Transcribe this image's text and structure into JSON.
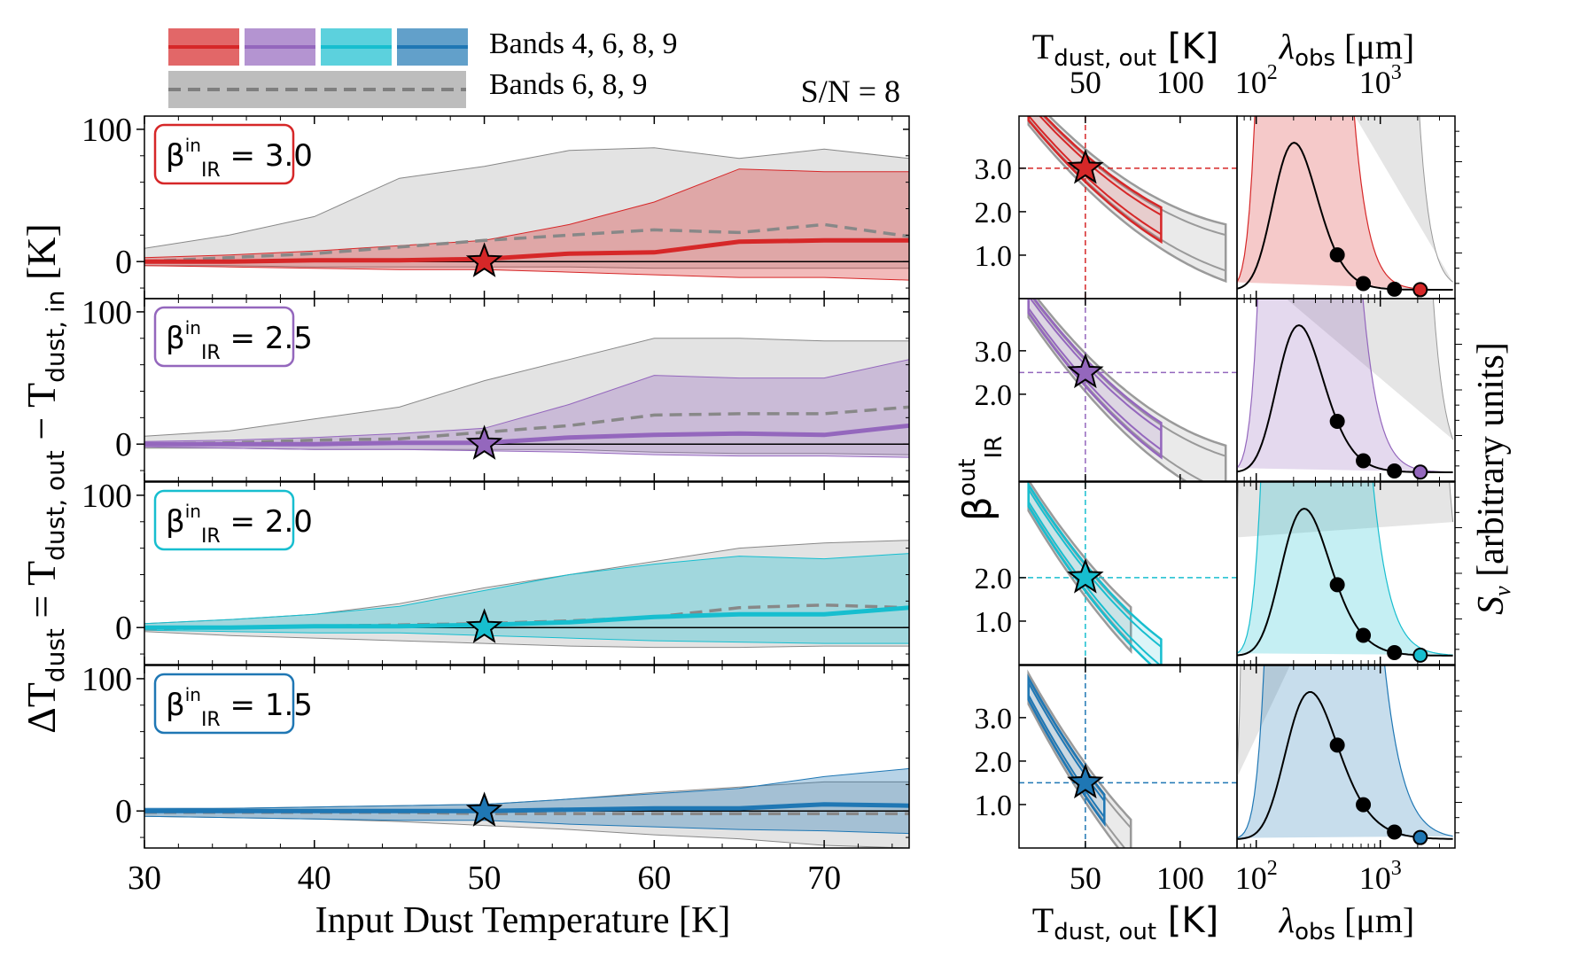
{
  "legend": {
    "row1_label": "Bands 4, 6, 8, 9",
    "row2_label": "Bands 6, 8, 9",
    "colors": [
      "#d62728",
      "#9467bd",
      "#17becf",
      "#1f77b4"
    ]
  },
  "annotation_sn": "S/N = 8",
  "left_ylabel": {
    "main": "ΔT",
    "main_sub": "dust",
    "eq": " = T",
    "sub1": "dust, out",
    "minus": " − T",
    "sub2": "dust, in",
    "unit": " [K]"
  },
  "left_xlabel": "Input Dust Temperature [K]",
  "left_xticks": [
    "30",
    "40",
    "50",
    "60",
    "70"
  ],
  "left_yticks": [
    "0",
    "100"
  ],
  "beta_labels": [
    "3.0",
    "2.5",
    "2.0",
    "1.5"
  ],
  "beta_prefix": "β",
  "beta_sup": "in",
  "beta_sub": "IR",
  "beta_eq": " = ",
  "mid_ylabel": {
    "main": "β",
    "sup": "out",
    "sub": "IR"
  },
  "mid_yticks": [
    [
      "3.0",
      "2.0",
      "1.0"
    ],
    [
      "3.0",
      "2.0"
    ],
    [
      "2.0",
      "1.0"
    ],
    [
      "3.0",
      "2.0",
      "1.0"
    ]
  ],
  "mid_xticks": [
    "50",
    "100"
  ],
  "mid_xlabel": {
    "main": "T",
    "sub": "dust, out",
    "unit": " [K]"
  },
  "right_xticks": [
    {
      "base": "10",
      "exp": "2"
    },
    {
      "base": "10",
      "exp": "3"
    }
  ],
  "right_xlabel": {
    "main": "λ",
    "sub": "obs",
    "unit": " [μm]"
  },
  "right_ylabel": {
    "main": "S",
    "sub": "ν",
    "unit": " [arbitrary units]"
  },
  "chart_data": [
    {
      "type": "area",
      "title": "",
      "xlabel": "Input Dust Temperature [K]",
      "ylabel": "ΔT_dust = T_dust,out − T_dust,in [K]",
      "x": [
        30,
        35,
        40,
        45,
        50,
        55,
        60,
        65,
        70,
        75
      ],
      "xlim": [
        30,
        75
      ],
      "ylim": [
        -28,
        110
      ],
      "grid": false,
      "legend_position": "top",
      "panels": [
        {
          "beta_in": 3.0,
          "series": [
            {
              "name": "Bands 4, 6, 8, 9",
              "median": [
                0,
                0,
                1,
                1,
                2,
                6,
                7,
                15,
                16,
                16
              ],
              "lower": [
                -3,
                -4,
                -5,
                -6,
                -6,
                -8,
                -10,
                -12,
                -12,
                -14
              ],
              "upper": [
                3,
                5,
                8,
                12,
                16,
                28,
                45,
                70,
                68,
                68
              ]
            },
            {
              "name": "Bands 6, 8, 9",
              "median": [
                0,
                3,
                6,
                11,
                16,
                20,
                24,
                22,
                28,
                19
              ],
              "lower": [
                -3,
                -3,
                -4,
                -4,
                -4,
                -4,
                -5,
                -5,
                -5,
                -5
              ],
              "upper": [
                10,
                20,
                34,
                63,
                72,
                84,
                86,
                78,
                85,
                78
              ]
            }
          ]
        },
        {
          "beta_in": 2.5,
          "series": [
            {
              "name": "Bands 4, 6, 8, 9",
              "median": [
                0,
                0,
                0,
                1,
                1,
                5,
                7,
                8,
                7,
                14
              ],
              "lower": [
                -2,
                -3,
                -4,
                -4,
                -5,
                -6,
                -8,
                -9,
                -9,
                -10
              ],
              "upper": [
                2,
                3,
                5,
                8,
                12,
                30,
                52,
                50,
                50,
                64
              ]
            },
            {
              "name": "Bands 6, 8, 9",
              "median": [
                0,
                1,
                3,
                4,
                9,
                14,
                22,
                23,
                23,
                28
              ],
              "lower": [
                -3,
                -3,
                -4,
                -4,
                -4,
                -4,
                -6,
                -7,
                -7,
                -8
              ],
              "upper": [
                6,
                10,
                19,
                28,
                48,
                64,
                80,
                80,
                78,
                78
              ]
            }
          ]
        },
        {
          "beta_in": 2.0,
          "series": [
            {
              "name": "Bands 4, 6, 8, 9",
              "median": [
                0,
                0,
                1,
                1,
                2,
                4,
                8,
                10,
                10,
                15
              ],
              "lower": [
                -2,
                -3,
                -4,
                -4,
                -6,
                -8,
                -10,
                -11,
                -12,
                -12
              ],
              "upper": [
                3,
                6,
                10,
                16,
                28,
                40,
                48,
                54,
                52,
                56
              ]
            },
            {
              "name": "Bands 6, 8, 9",
              "median": [
                -1,
                0,
                1,
                2,
                3,
                5,
                8,
                15,
                17,
                15
              ],
              "lower": [
                -3,
                -6,
                -8,
                -10,
                -12,
                -14,
                -15,
                -15,
                -14,
                -14
              ],
              "upper": [
                3,
                6,
                10,
                18,
                30,
                40,
                50,
                60,
                64,
                66
              ]
            }
          ]
        },
        {
          "beta_in": 1.5,
          "series": [
            {
              "name": "Bands 4, 6, 8, 9",
              "median": [
                0,
                0,
                0,
                0,
                0,
                1,
                2,
                2,
                5,
                4
              ],
              "lower": [
                -4,
                -5,
                -6,
                -7,
                -7,
                -10,
                -12,
                -14,
                -15,
                -17
              ],
              "upper": [
                2,
                2,
                3,
                4,
                5,
                9,
                13,
                17,
                26,
                32
              ]
            },
            {
              "name": "Bands 6, 8, 9",
              "median": [
                -1,
                -1,
                -1,
                -1,
                -2,
                -2,
                -2,
                -2,
                -2,
                -2
              ],
              "lower": [
                -4,
                -5,
                -6,
                -8,
                -11,
                -14,
                -18,
                -21,
                -26,
                -28
              ],
              "upper": [
                1,
                2,
                3,
                4,
                5,
                9,
                14,
                18,
                22,
                22
              ]
            }
          ]
        }
      ],
      "marker": {
        "x": 50,
        "y": 0,
        "shape": "star"
      }
    },
    {
      "type": "scatter",
      "description_kind": "posterior contours",
      "xlabel": "T_dust,out [K]",
      "ylabel": "β_IR^out",
      "xlim": [
        15,
        130
      ],
      "ylim": [
        0,
        4.2
      ],
      "panels": [
        {
          "beta_in": 3.0,
          "truth": {
            "T": 50,
            "beta": 3.0
          }
        },
        {
          "beta_in": 2.5,
          "truth": {
            "T": 50,
            "beta": 2.5
          }
        },
        {
          "beta_in": 2.0,
          "truth": {
            "T": 50,
            "beta": 2.0
          }
        },
        {
          "beta_in": 1.5,
          "truth": {
            "T": 50,
            "beta": 1.5
          }
        }
      ]
    },
    {
      "type": "line",
      "description_kind": "modified blackbody SED",
      "xlabel": "λ_obs [μm]",
      "ylabel": "S_ν [arbitrary units]",
      "xscale": "log",
      "xlim": [
        70,
        4000
      ],
      "band_wavelengths": [
        450,
        730,
        1300,
        2100
      ]
    }
  ]
}
